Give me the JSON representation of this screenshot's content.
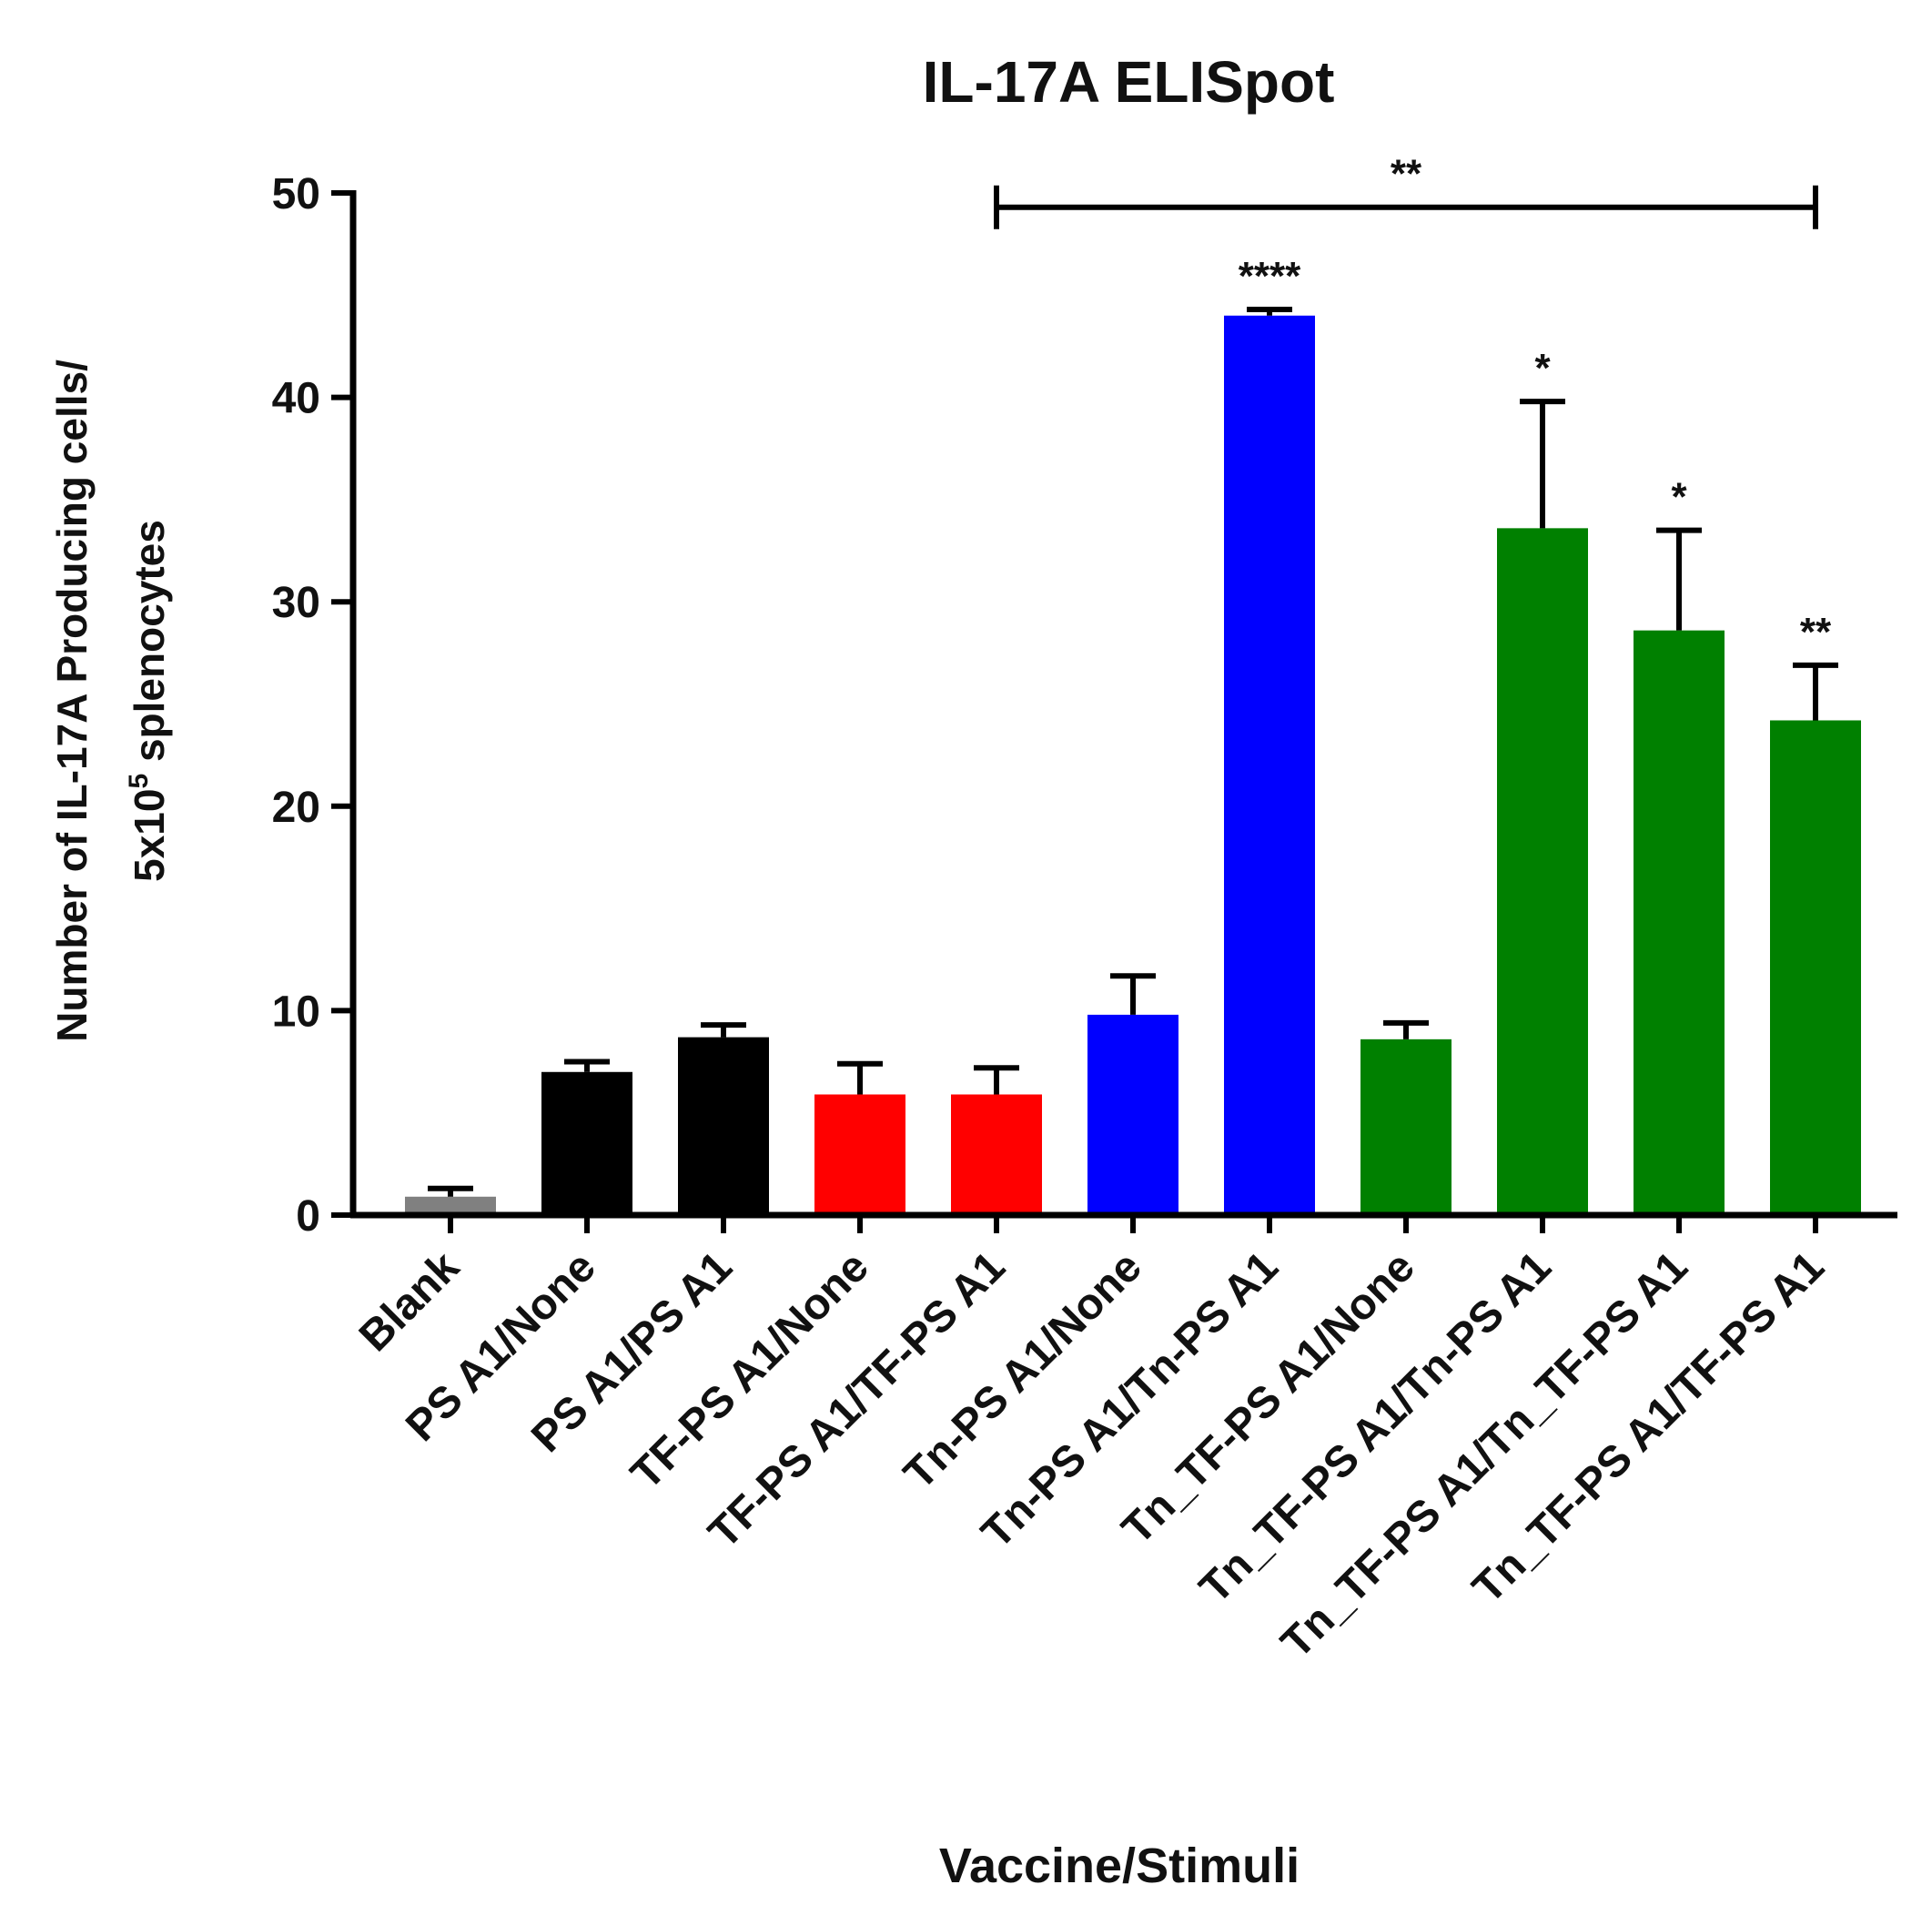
{
  "chart_data": {
    "type": "bar",
    "title": "IL-17A ELISpot",
    "xlabel": "Vaccine/Stimuli",
    "ylabel_line1": "Number of IL-17A Producing cells/",
    "ylabel_line2_prefix": "5x10",
    "ylabel_line2_superscript": "5",
    "ylabel_line2_suffix": " splenocytes",
    "ylim": [
      0,
      50
    ],
    "yticks": [
      0,
      10,
      20,
      30,
      40,
      50
    ],
    "categories": [
      "Blank",
      "PS A1/None",
      "PS A1/PS A1",
      "TF-PS A1/None",
      "TF-PS A1/TF-PS A1",
      "Tn-PS A1/None",
      "Tn-PS A1/Tn-PS A1",
      "Tn_TF-PS A1/None",
      "Tn_TF-PS A1/Tn-PS A1",
      "Tn_TF-PS A1/Tn_TF-PS A1",
      "Tn_TF-PS A1/TF-PS A1"
    ],
    "values": [
      0.9,
      7.0,
      8.7,
      5.9,
      5.9,
      9.8,
      44.0,
      8.6,
      33.6,
      28.6,
      24.2
    ],
    "errors": [
      0.4,
      0.5,
      0.6,
      1.5,
      1.3,
      1.9,
      0.3,
      0.8,
      6.2,
      4.9,
      2.7
    ],
    "colors": [
      "#808080",
      "#000000",
      "#000000",
      "#ff0000",
      "#ff0000",
      "#0000ff",
      "#0000ff",
      "#008000",
      "#008000",
      "#008000",
      "#008000"
    ],
    "significance": [
      "",
      "",
      "",
      "",
      "",
      "",
      "****",
      "",
      "*",
      "*",
      "**"
    ],
    "bracket": {
      "from_index": 4,
      "to_index": 10,
      "y": 49.3,
      "label": "**"
    }
  }
}
